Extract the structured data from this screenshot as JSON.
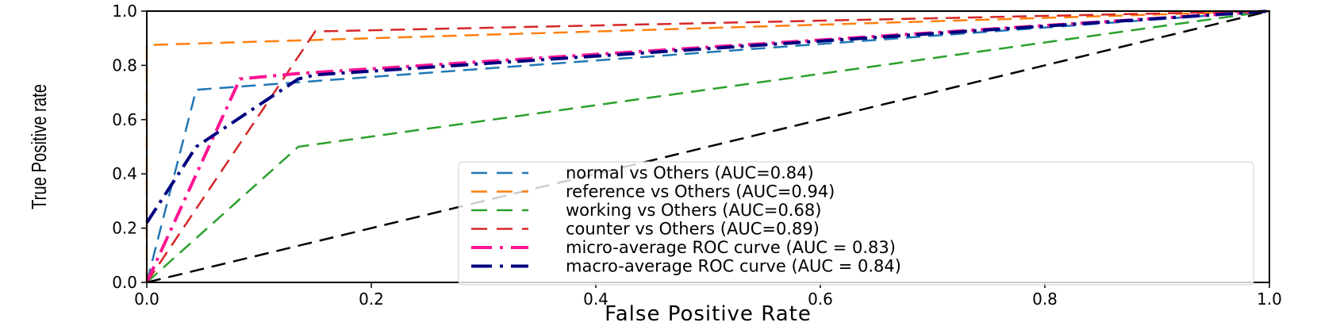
{
  "chart_data": {
    "type": "line",
    "title": "",
    "xlabel": "False Positive Rate",
    "ylabel": "True Positive rate",
    "xlim": [
      0.0,
      1.0
    ],
    "ylim": [
      0.0,
      1.0
    ],
    "xticks": [
      "0.0",
      "0.2",
      "0.4",
      "0.6",
      "0.8",
      "1.0"
    ],
    "yticks": [
      "0.0",
      "0.2",
      "0.4",
      "0.6",
      "0.8",
      "1.0"
    ],
    "grid": false,
    "legend_position": "lower-right",
    "series": [
      {
        "name": "normal vs Others (AUC=0.84)",
        "color": "#1f77b4",
        "style": "dashed",
        "x": [
          0.0,
          0.0,
          0.044,
          1.0
        ],
        "y": [
          0.0,
          0.0,
          0.71,
          1.0
        ]
      },
      {
        "name": "reference vs Others (AUC=0.94)",
        "color": "#ff7f0e",
        "style": "dashed",
        "x": [
          0.0,
          0.0,
          1.0
        ],
        "y": [
          0.0,
          0.875,
          1.0
        ]
      },
      {
        "name": "working vs Others (AUC=0.68)",
        "color": "#2ca02c",
        "style": "dashed",
        "x": [
          0.0,
          0.135,
          1.0
        ],
        "y": [
          0.0,
          0.5,
          1.0
        ]
      },
      {
        "name": "counter vs Others (AUC=0.89)",
        "color": "#d62728",
        "style": "dashed",
        "x": [
          0.0,
          0.15,
          1.0
        ],
        "y": [
          0.0,
          0.925,
          1.0
        ]
      },
      {
        "name": "micro-average ROC curve (AUC = 0.83)",
        "color": "#ff1493",
        "style": "dashdot",
        "x": [
          0.0,
          0.083,
          0.135,
          1.0
        ],
        "y": [
          0.0,
          0.75,
          0.77,
          1.0
        ]
      },
      {
        "name": "macro-average ROC curve (AUC = 0.84)",
        "color": "#000080",
        "style": "dashdot",
        "x": [
          0.0,
          0.044,
          0.135,
          0.15,
          1.0
        ],
        "y": [
          0.22,
          0.5,
          0.75,
          0.765,
          1.0
        ]
      },
      {
        "name": "",
        "color": "#000000",
        "style": "dashed",
        "x": [
          0.0,
          1.0
        ],
        "y": [
          0.0,
          1.0
        ]
      }
    ]
  }
}
